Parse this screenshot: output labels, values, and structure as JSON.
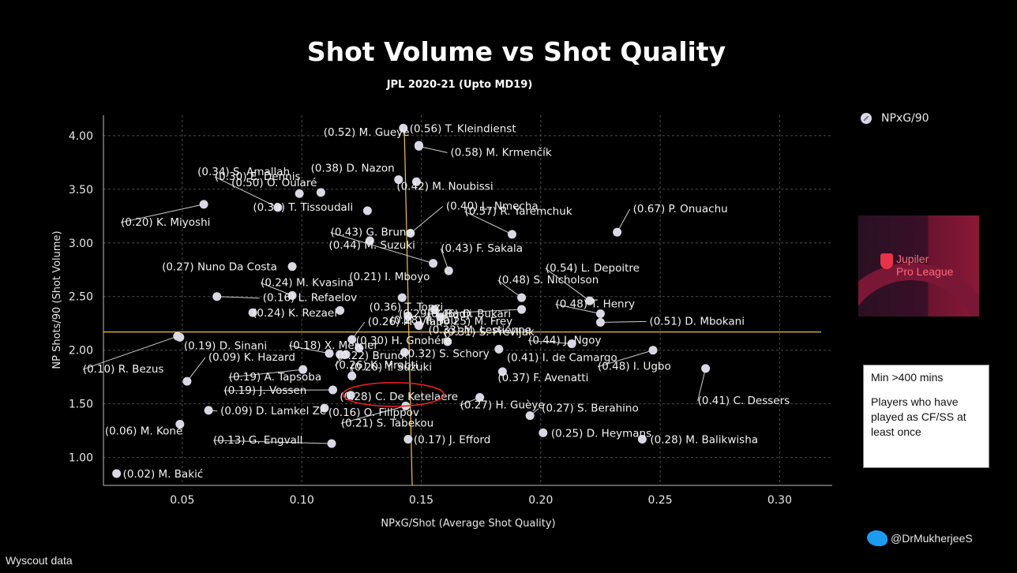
{
  "title": "Shot Volume vs Shot Quality",
  "subtitle": "JPL 2020-21 (Upto MD19)",
  "legend": {
    "label": "NPxG/90",
    "icon": "marker-circle-icon"
  },
  "logo": {
    "name_line1": "Jupiler",
    "name_line2": "Pro League"
  },
  "note": {
    "line1": "Min >400 mins",
    "line2": "Players who have played as CF/SS at least once"
  },
  "source": "Wyscout data",
  "handle": {
    "text": "@DrMukherjeeS",
    "icon": "twitter-bird-icon"
  },
  "colors": {
    "background": "#000000",
    "marker": "#d9d9e6",
    "avg_line": "#f0c040",
    "highlight": "#e02020"
  },
  "chart_data": {
    "type": "scatter",
    "xlabel": "NPxG/Shot (Average Shot Quality)",
    "ylabel": "NP Shots/90 (Shot Volume)",
    "xlim": [
      0.017,
      0.322
    ],
    "ylim": [
      0.74,
      4.19
    ],
    "xticks": [
      "0.05",
      "0.10",
      "0.15",
      "0.20",
      "0.25",
      "0.30"
    ],
    "yticks": [
      "1.00",
      "1.50",
      "2.00",
      "2.50",
      "3.00",
      "3.50",
      "4.00"
    ],
    "grid": true,
    "avg_x": 0.145,
    "avg_y": 2.17,
    "highlight": "C. De Ketelaere",
    "points": [
      {
        "label": "(0.56) T. Kleindienst",
        "x": 0.1425,
        "y": 4.07
      },
      {
        "label": "(0.52) M. Gueye",
        "x": 0.149,
        "y": 3.91
      },
      {
        "label": "(0.58) M. Krmenčík",
        "x": 0.149,
        "y": 3.9
      },
      {
        "label": "(0.38) D. Nazon",
        "x": 0.1405,
        "y": 3.59
      },
      {
        "label": "(0.50) O. Oularé",
        "x": 0.108,
        "y": 3.47
      },
      {
        "label": "(0.34) S. Amallah",
        "x": 0.099,
        "y": 3.46
      },
      {
        "label": "(0.42) M. Noubissi",
        "x": 0.148,
        "y": 3.57
      },
      {
        "label": "(0.57) R. Yaremchuk",
        "x": 0.188,
        "y": 3.08
      },
      {
        "label": "(0.67) P. Onuachu",
        "x": 0.232,
        "y": 3.1
      },
      {
        "label": "(0.20) K. Miyoshi",
        "x": 0.059,
        "y": 3.36
      },
      {
        "label": "(0.30) E. Dennis",
        "x": 0.09,
        "y": 3.33
      },
      {
        "label": "(0.39) T. Tissoudali",
        "x": 0.1275,
        "y": 3.3
      },
      {
        "label": "(0.40) L. Nmecha",
        "x": 0.1455,
        "y": 3.09
      },
      {
        "label": "(0.44) M. Suzuki",
        "x": 0.1285,
        "y": 3.02
      },
      {
        "label": "(0.43) F. Sakala",
        "x": 0.1615,
        "y": 2.74
      },
      {
        "label": "(0.43) G. Bruno",
        "x": 0.155,
        "y": 2.81
      },
      {
        "label": "(0.27) Nuno Da Costa",
        "x": 0.096,
        "y": 2.78
      },
      {
        "label": "(0.54) L. Depoitre",
        "x": 0.2205,
        "y": 2.46
      },
      {
        "label": "(0.48) T. Henry",
        "x": 0.225,
        "y": 2.34
      },
      {
        "label": "(0.48) S. Nicholson",
        "x": 0.192,
        "y": 2.49
      },
      {
        "label": "(0.46) O. Bukari",
        "x": 0.192,
        "y": 2.38
      },
      {
        "label": "(0.21) I. Mboyo",
        "x": 0.142,
        "y": 2.49
      },
      {
        "label": "(0.29) Y. Badji",
        "x": 0.1555,
        "y": 2.38
      },
      {
        "label": "(0.24) M. Kvasina",
        "x": 0.096,
        "y": 2.51
      },
      {
        "label": "(0.16) L. Refaelov",
        "x": 0.0645,
        "y": 2.5
      },
      {
        "label": "(0.36) T. Tonzi",
        "x": 0.116,
        "y": 2.37
      },
      {
        "label": "(0.28) R. Tau",
        "x": 0.1445,
        "y": 2.32
      },
      {
        "label": "(0.25) M. Frey",
        "x": 0.158,
        "y": 2.31
      },
      {
        "label": "(0.33) M. Lestienne",
        "x": 0.149,
        "y": 2.23
      },
      {
        "label": "(0.44) J. Ngoy",
        "x": 0.213,
        "y": 2.06
      },
      {
        "label": "(0.51) D. Mbokani",
        "x": 0.225,
        "y": 2.26
      },
      {
        "label": "(0.24) K. Rezaei",
        "x": 0.0795,
        "y": 2.35
      },
      {
        "label": "(0.19) D. Sinani",
        "x": 0.049,
        "y": 2.12
      },
      {
        "label": "(0.26) M. Vlap",
        "x": 0.121,
        "y": 2.1
      },
      {
        "label": "(0.18) X. Mercier",
        "x": 0.1115,
        "y": 1.97
      },
      {
        "label": "(0.30) H. Gnohéré",
        "x": 0.124,
        "y": 2.02
      },
      {
        "label": "(0.31) S. Prevljak",
        "x": 0.161,
        "y": 2.08
      },
      {
        "label": "(0.22) Bruno",
        "x": 0.116,
        "y": 1.96
      },
      {
        "label": "(0.32) S. Schory",
        "x": 0.143,
        "y": 1.98
      },
      {
        "label": "(0.41) I. de Camargo",
        "x": 0.1825,
        "y": 2.01
      },
      {
        "label": "(0.48) I. Ugbo",
        "x": 0.247,
        "y": 2.0
      },
      {
        "label": "(0.10) R. Bezus",
        "x": 0.048,
        "y": 2.13
      },
      {
        "label": "(0.09) K. Hazard",
        "x": 0.052,
        "y": 1.71
      },
      {
        "label": "(0.26) K. Mrabti",
        "x": 0.1185,
        "y": 1.96
      },
      {
        "label": "(0.19) A. Tapsoba",
        "x": 0.1005,
        "y": 1.82
      },
      {
        "label": "(0.20) Y. Suzuki",
        "x": 0.121,
        "y": 1.76
      },
      {
        "label": "(0.37) F. Avenatti",
        "x": 0.184,
        "y": 1.8
      },
      {
        "label": "(0.41) C. Dessers",
        "x": 0.269,
        "y": 1.83
      },
      {
        "label": "(0.19) J. Vossen",
        "x": 0.113,
        "y": 1.63
      },
      {
        "label": "(0.28) C. De Ketelaere",
        "x": 0.1205,
        "y": 1.58
      },
      {
        "label": "(0.09) D. Lamkel Zé",
        "x": 0.061,
        "y": 1.44
      },
      {
        "label": "(0.16) O. Filippov",
        "x": 0.1095,
        "y": 1.46
      },
      {
        "label": "(0.27) H. Guèye",
        "x": 0.1745,
        "y": 1.56
      },
      {
        "label": "(0.27) S. Berahino",
        "x": 0.1955,
        "y": 1.39
      },
      {
        "label": "(0.21) S. Tabekou",
        "x": 0.1435,
        "y": 1.48
      },
      {
        "label": "(0.06) M. Koné",
        "x": 0.049,
        "y": 1.31
      },
      {
        "label": "(0.25) D. Heymans",
        "x": 0.201,
        "y": 1.23
      },
      {
        "label": "(0.28) M. Balikwisha",
        "x": 0.2425,
        "y": 1.17
      },
      {
        "label": "(0.13) G. Engvall",
        "x": 0.1125,
        "y": 1.13
      },
      {
        "label": "(0.17) J. Efford",
        "x": 0.1445,
        "y": 1.17
      },
      {
        "label": "(0.02) M. Bakić",
        "x": 0.0225,
        "y": 0.85
      }
    ]
  }
}
